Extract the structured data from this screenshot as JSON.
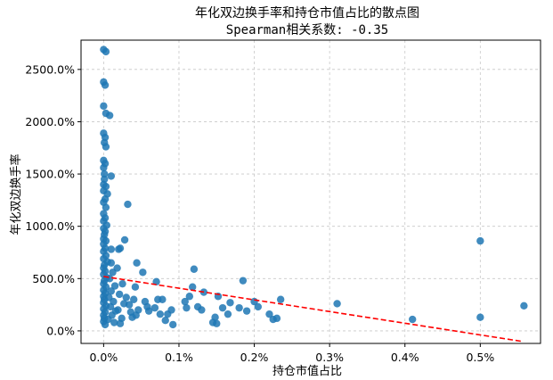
{
  "chart_data": {
    "type": "scatter",
    "title": "年化双边换手率和持仓市值占比的散点图",
    "subtitle": "Spearman相关系数: -0.35",
    "xlabel": "持仓市值占比",
    "ylabel": "年化双边换手率",
    "xlim": [
      -0.0003,
      0.0058
    ],
    "ylim": [
      -120,
      2780
    ],
    "x_ticks": [
      0,
      0.001,
      0.002,
      0.003,
      0.004,
      0.005
    ],
    "x_tick_labels": [
      "0.0%",
      "0.1%",
      "0.2%",
      "0.3%",
      "0.4%",
      "0.5%"
    ],
    "y_ticks": [
      0,
      500,
      1000,
      1500,
      2000,
      2500
    ],
    "y_tick_labels": [
      "0.0%",
      "500.0%",
      "1000.0%",
      "1500.0%",
      "2000.0%",
      "2500.0%"
    ],
    "grid": true,
    "point_color": "#1f77b4",
    "trend_color": "#ff0000",
    "trend_line": {
      "x": [
        0.0,
        0.00555
      ],
      "y": [
        520,
        -100
      ]
    },
    "points": [
      {
        "x": 0.0,
        "y": 2690
      },
      {
        "x": 3e-05,
        "y": 2670
      },
      {
        "x": 0.0,
        "y": 2380
      },
      {
        "x": 2e-05,
        "y": 2350
      },
      {
        "x": 0.0,
        "y": 2150
      },
      {
        "x": 3e-05,
        "y": 2080
      },
      {
        "x": 8e-05,
        "y": 2060
      },
      {
        "x": 0.0,
        "y": 1890
      },
      {
        "x": 2e-05,
        "y": 1850
      },
      {
        "x": 1e-05,
        "y": 1800
      },
      {
        "x": 3e-05,
        "y": 1760
      },
      {
        "x": 0.0,
        "y": 1630
      },
      {
        "x": 2e-05,
        "y": 1600
      },
      {
        "x": 0.0,
        "y": 1560
      },
      {
        "x": 1e-05,
        "y": 1500
      },
      {
        "x": 0.0001,
        "y": 1480
      },
      {
        "x": 1e-05,
        "y": 1450
      },
      {
        "x": 0.0,
        "y": 1400
      },
      {
        "x": 3e-05,
        "y": 1380
      },
      {
        "x": 0.0,
        "y": 1340
      },
      {
        "x": 5e-05,
        "y": 1310
      },
      {
        "x": 2e-05,
        "y": 1260
      },
      {
        "x": 0.0,
        "y": 1230
      },
      {
        "x": 3e-05,
        "y": 1180
      },
      {
        "x": 0.0,
        "y": 1120
      },
      {
        "x": 2e-05,
        "y": 1080
      },
      {
        "x": 0.0,
        "y": 1050
      },
      {
        "x": 4e-05,
        "y": 1010
      },
      {
        "x": 0.0,
        "y": 980
      },
      {
        "x": 2e-05,
        "y": 950
      },
      {
        "x": 1e-05,
        "y": 920
      },
      {
        "x": 0.0,
        "y": 880
      },
      {
        "x": 3e-05,
        "y": 860
      },
      {
        "x": 0.0,
        "y": 830
      },
      {
        "x": 2e-05,
        "y": 790
      },
      {
        "x": 0.0001,
        "y": 780
      },
      {
        "x": 0.0,
        "y": 760
      },
      {
        "x": 3e-05,
        "y": 720
      },
      {
        "x": 0.0,
        "y": 690
      },
      {
        "x": 5e-05,
        "y": 660
      },
      {
        "x": 1e-05,
        "y": 630
      },
      {
        "x": 0.0,
        "y": 600
      },
      {
        "x": 2e-05,
        "y": 570
      },
      {
        "x": 0.0,
        "y": 540
      },
      {
        "x": 4e-05,
        "y": 510
      },
      {
        "x": 1e-05,
        "y": 480
      },
      {
        "x": 0.0,
        "y": 450
      },
      {
        "x": 3e-05,
        "y": 420
      },
      {
        "x": 0.0,
        "y": 390
      },
      {
        "x": 2e-05,
        "y": 360
      },
      {
        "x": 0.0,
        "y": 330
      },
      {
        "x": 1e-05,
        "y": 300
      },
      {
        "x": 0.0,
        "y": 270
      },
      {
        "x": 3e-05,
        "y": 240
      },
      {
        "x": 0.0,
        "y": 210
      },
      {
        "x": 2e-05,
        "y": 180
      },
      {
        "x": 0.0,
        "y": 150
      },
      {
        "x": 1e-05,
        "y": 120
      },
      {
        "x": 0.0,
        "y": 90
      },
      {
        "x": 2e-05,
        "y": 60
      },
      {
        "x": 0.0001,
        "y": 650
      },
      {
        "x": 0.00012,
        "y": 560
      },
      {
        "x": 8e-05,
        "y": 500
      },
      {
        "x": 0.00015,
        "y": 430
      },
      {
        "x": 0.0001,
        "y": 380
      },
      {
        "x": 7e-05,
        "y": 320
      },
      {
        "x": 0.00013,
        "y": 280
      },
      {
        "x": 9e-05,
        "y": 230
      },
      {
        "x": 0.00016,
        "y": 190
      },
      {
        "x": 0.00011,
        "y": 150
      },
      {
        "x": 6e-05,
        "y": 110
      },
      {
        "x": 0.00014,
        "y": 80
      },
      {
        "x": 0.0002,
        "y": 780
      },
      {
        "x": 0.00022,
        "y": 790
      },
      {
        "x": 0.00028,
        "y": 870
      },
      {
        "x": 0.00018,
        "y": 600
      },
      {
        "x": 0.00025,
        "y": 450
      },
      {
        "x": 0.00021,
        "y": 350
      },
      {
        "x": 0.00027,
        "y": 260
      },
      {
        "x": 0.00019,
        "y": 200
      },
      {
        "x": 0.00024,
        "y": 120
      },
      {
        "x": 0.00022,
        "y": 70
      },
      {
        "x": 0.00032,
        "y": 1210
      },
      {
        "x": 0.0003,
        "y": 320
      },
      {
        "x": 0.00034,
        "y": 250
      },
      {
        "x": 0.00036,
        "y": 180
      },
      {
        "x": 0.00038,
        "y": 130
      },
      {
        "x": 0.00042,
        "y": 420
      },
      {
        "x": 0.00044,
        "y": 650
      },
      {
        "x": 0.0004,
        "y": 300
      },
      {
        "x": 0.00046,
        "y": 200
      },
      {
        "x": 0.00043,
        "y": 150
      },
      {
        "x": 0.00052,
        "y": 560
      },
      {
        "x": 0.00055,
        "y": 280
      },
      {
        "x": 0.0006,
        "y": 190
      },
      {
        "x": 0.00058,
        "y": 230
      },
      {
        "x": 0.0007,
        "y": 470
      },
      {
        "x": 0.00072,
        "y": 300
      },
      {
        "x": 0.00068,
        "y": 220
      },
      {
        "x": 0.00075,
        "y": 160
      },
      {
        "x": 0.00078,
        "y": 300
      },
      {
        "x": 0.00082,
        "y": 100
      },
      {
        "x": 0.00085,
        "y": 160
      },
      {
        "x": 0.00092,
        "y": 60
      },
      {
        "x": 0.0009,
        "y": 200
      },
      {
        "x": 0.00108,
        "y": 280
      },
      {
        "x": 0.0011,
        "y": 220
      },
      {
        "x": 0.00114,
        "y": 330
      },
      {
        "x": 0.00118,
        "y": 420
      },
      {
        "x": 0.0012,
        "y": 590
      },
      {
        "x": 0.00125,
        "y": 230
      },
      {
        "x": 0.00133,
        "y": 370
      },
      {
        "x": 0.0013,
        "y": 200
      },
      {
        "x": 0.00145,
        "y": 80
      },
      {
        "x": 0.00148,
        "y": 130
      },
      {
        "x": 0.0015,
        "y": 70
      },
      {
        "x": 0.00152,
        "y": 330
      },
      {
        "x": 0.00158,
        "y": 220
      },
      {
        "x": 0.00165,
        "y": 160
      },
      {
        "x": 0.00168,
        "y": 270
      },
      {
        "x": 0.0018,
        "y": 220
      },
      {
        "x": 0.00185,
        "y": 480
      },
      {
        "x": 0.0019,
        "y": 190
      },
      {
        "x": 0.002,
        "y": 280
      },
      {
        "x": 0.00205,
        "y": 230
      },
      {
        "x": 0.0022,
        "y": 160
      },
      {
        "x": 0.00225,
        "y": 110
      },
      {
        "x": 0.0023,
        "y": 120
      },
      {
        "x": 0.00235,
        "y": 300
      },
      {
        "x": 0.0031,
        "y": 260
      },
      {
        "x": 0.0041,
        "y": 110
      },
      {
        "x": 0.005,
        "y": 860
      },
      {
        "x": 0.005,
        "y": 130
      },
      {
        "x": 0.00558,
        "y": 240
      }
    ]
  }
}
